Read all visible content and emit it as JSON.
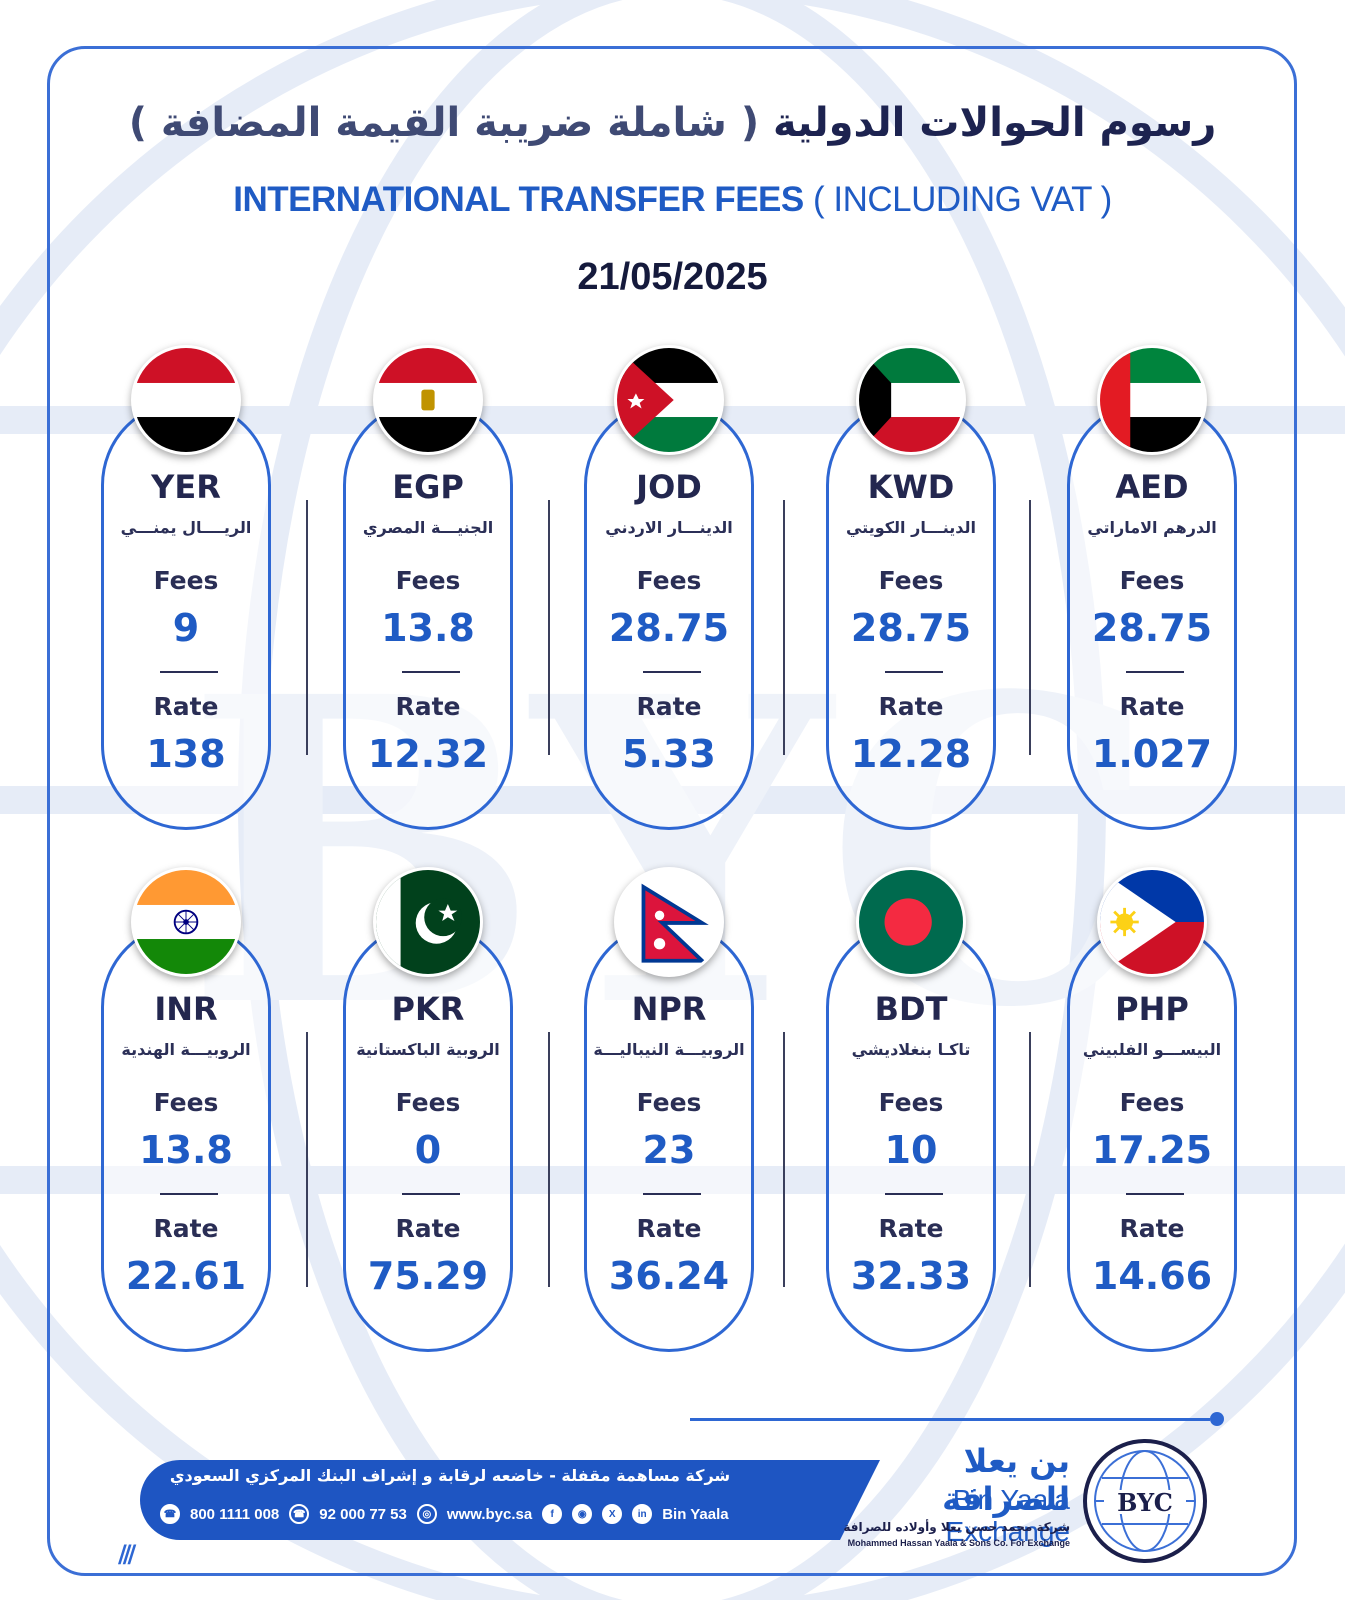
{
  "header": {
    "title_ar_main": "رسوم الحوالات الدولية",
    "title_ar_sub": "( شاملة ضريبة القيمة المضافة )",
    "title_en_main": "INTERNATIONAL TRANSFER FEES",
    "title_en_sub": "( INCLUDING VAT )",
    "date": "21/05/2025"
  },
  "labels": {
    "fees": "Fees",
    "rate": "Rate"
  },
  "currencies": [
    {
      "code": "AED",
      "name_ar": "الدرهم الاماراتي",
      "fees": "28.75",
      "rate": "1.027",
      "flag": "uae-flag"
    },
    {
      "code": "KWD",
      "name_ar": "الدينـــار الكويتي",
      "fees": "28.75",
      "rate": "12.28",
      "flag": "kuwait-flag"
    },
    {
      "code": "JOD",
      "name_ar": "الدينـــار الاردني",
      "fees": "28.75",
      "rate": "5.33",
      "flag": "jordan-flag"
    },
    {
      "code": "EGP",
      "name_ar": "الجنيـــة المصري",
      "fees": "13.8",
      "rate": "12.32",
      "flag": "egypt-flag"
    },
    {
      "code": "YER",
      "name_ar": "الريــــال يمنـــي",
      "fees": "9",
      "rate": "138",
      "flag": "yemen-flag"
    },
    {
      "code": "PHP",
      "name_ar": "البيســـو الفلبيني",
      "fees": "17.25",
      "rate": "14.66",
      "flag": "philippines-flag"
    },
    {
      "code": "BDT",
      "name_ar": "تاكـا بنغلاديشي",
      "fees": "10",
      "rate": "32.33",
      "flag": "bangladesh-flag"
    },
    {
      "code": "NPR",
      "name_ar": "الروبيـــة النيباليـــة",
      "fees": "23",
      "rate": "36.24",
      "flag": "nepal-flag"
    },
    {
      "code": "PKR",
      "name_ar": "الروبية الباكستانية",
      "fees": "0",
      "rate": "75.29",
      "flag": "pakistan-flag"
    },
    {
      "code": "INR",
      "name_ar": "الروبيـــة الهندية",
      "fees": "13.8",
      "rate": "22.61",
      "flag": "india-flag"
    }
  ],
  "footer": {
    "legal_ar": "شركة مساهمة مقفلة - خاضعه لرقابة و إشراف البنك المركزي السعودي",
    "phone1": "800 1111 008",
    "phone2": "92 000 77 53",
    "website": "www.byc.sa",
    "social_handle": "Bin Yaala",
    "brand_ar": "بن يعلا للصرافة",
    "brand_en": "Bin Yaala Exchange",
    "brand_sub_ar": "شركة محمد حسن يعلا وأولاده للصرافة",
    "brand_sub_en": "Mohammed Hassan Yaala & Sons Co. For Exchange",
    "logo_text": "BYC"
  },
  "colors": {
    "accent": "#1f5bc4",
    "border": "#2e67d3",
    "dark": "#1d2350"
  }
}
